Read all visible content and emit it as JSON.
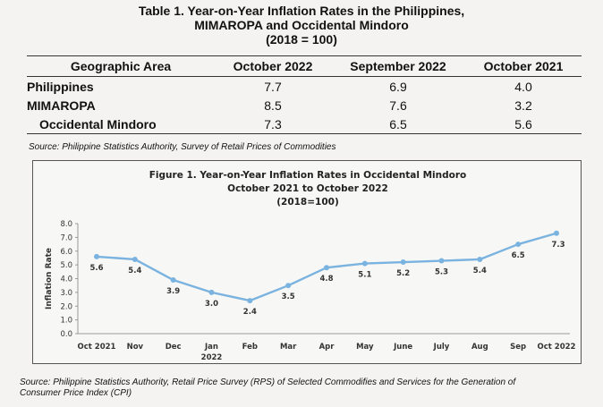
{
  "table": {
    "title_line1": "Table 1. Year-on-Year Inflation Rates in the Philippines,",
    "title_line2": "MIMAROPA and Occidental Mindoro",
    "title_line3": "(2018 = 100)",
    "headers": [
      "Geographic Area",
      "October 2022",
      "September 2022",
      "October 2021"
    ],
    "rows": [
      {
        "area": "Philippines",
        "values": [
          "7.7",
          "6.9",
          "4.0"
        ]
      },
      {
        "area": "MIMAROPA",
        "values": [
          "8.5",
          "7.6",
          "3.2"
        ]
      },
      {
        "area": "Occidental Mindoro",
        "values": [
          "7.3",
          "6.5",
          "5.6"
        ]
      }
    ],
    "source": "Source: Philippine Statistics Authority, Survey of Retail Prices of Commodities"
  },
  "chart_data": {
    "type": "line",
    "title_line1": "Figure 1. Year-on-Year Inflation Rates in Occidental Mindoro",
    "title_line2": "October 2021 to October 2022",
    "title_line3": "(2018=100)",
    "ylabel": "Inflation Rate",
    "xlabel": "",
    "categories": [
      "Oct 2021",
      "Nov",
      "Dec",
      "Jan",
      "Feb",
      "Mar",
      "Apr",
      "May",
      "June",
      "July",
      "Aug",
      "Sep",
      "Oct 2022"
    ],
    "year_label": "2022",
    "values": [
      5.6,
      5.4,
      3.9,
      3.0,
      2.4,
      3.5,
      4.8,
      5.1,
      5.2,
      5.3,
      5.4,
      6.5,
      7.3
    ],
    "ylim": [
      0,
      8
    ],
    "yticks": [
      "0.0",
      "1.0",
      "2.0",
      "3.0",
      "4.0",
      "5.0",
      "6.0",
      "7.0",
      "8.0"
    ],
    "line_color": "#7ab3e0",
    "grid": false,
    "legend": "none"
  },
  "source2": "Source: Philippine Statistics Authority, Retail Price Survey (RPS) of Selected Commodifies and Services for the Generation of Consumer Price Index (CPI)"
}
